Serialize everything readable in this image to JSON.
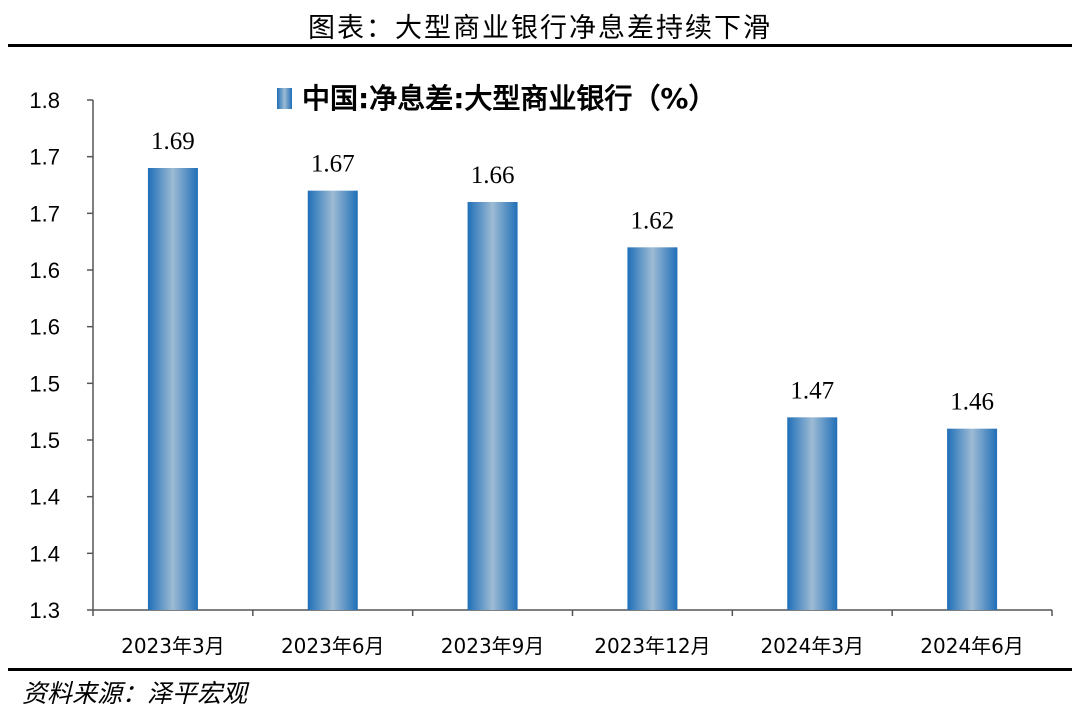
{
  "header": {
    "title": "图表：大型商业银行净息差持续下滑"
  },
  "footer": {
    "source": "资料来源：泽平宏观"
  },
  "chart_data": {
    "type": "bar",
    "legend": {
      "label": "中国:净息差:大型商业银行（%）",
      "placement": "top-center"
    },
    "categories": [
      "2023年3月",
      "2023年6月",
      "2023年9月",
      "2023年12月",
      "2024年3月",
      "2024年6月"
    ],
    "series": [
      {
        "name": "中国:净息差:大型商业银行（%）",
        "values": [
          1.69,
          1.67,
          1.66,
          1.62,
          1.47,
          1.46
        ],
        "color": "#2f7bbf"
      }
    ],
    "data_labels": [
      "1.69",
      "1.67",
      "1.66",
      "1.62",
      "1.47",
      "1.46"
    ],
    "y_ticks": [
      {
        "value": 1.3,
        "label": "1.3"
      },
      {
        "value": 1.35,
        "label": "1.4"
      },
      {
        "value": 1.4,
        "label": "1.4"
      },
      {
        "value": 1.45,
        "label": "1.5"
      },
      {
        "value": 1.5,
        "label": "1.5"
      },
      {
        "value": 1.55,
        "label": "1.6"
      },
      {
        "value": 1.6,
        "label": "1.6"
      },
      {
        "value": 1.65,
        "label": "1.7"
      },
      {
        "value": 1.7,
        "label": "1.7"
      },
      {
        "value": 1.75,
        "label": "1.8"
      }
    ],
    "ylim": [
      1.3,
      1.75
    ],
    "grid": false
  }
}
